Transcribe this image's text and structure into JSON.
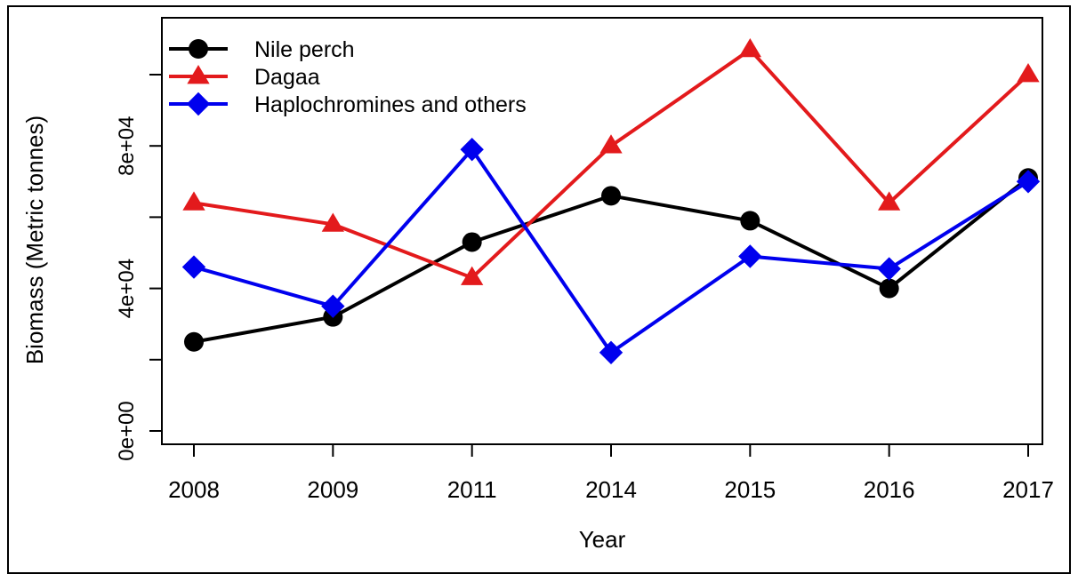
{
  "chart_data": {
    "type": "line",
    "categories": [
      "2008",
      "2009",
      "2011",
      "2014",
      "2015",
      "2016",
      "2017"
    ],
    "xlabel": "Year",
    "ylabel": "Biomass (Metric tonnes)",
    "ylim": [
      0,
      105000
    ],
    "yticks": [
      0,
      20000,
      40000,
      60000,
      80000,
      100000
    ],
    "ytick_labels": [
      "0e+00",
      "",
      "4e+04",
      "",
      "8e+04",
      ""
    ],
    "grid": false,
    "legend_position": "top-left",
    "series": [
      {
        "name": "Nile perch",
        "color": "#000000",
        "marker": "circle",
        "values": [
          25000,
          32000,
          53000,
          66000,
          59000,
          40000,
          71000
        ]
      },
      {
        "name": "Dagaa",
        "color": "#e31a1c",
        "marker": "triangle",
        "values": [
          64000,
          58000,
          43000,
          80000,
          107000,
          64000,
          100000
        ]
      },
      {
        "name": "Haplochromines and others",
        "color": "#0000ee",
        "marker": "diamond",
        "values": [
          46000,
          35000,
          79000,
          22000,
          49000,
          45500,
          70000
        ]
      }
    ]
  }
}
